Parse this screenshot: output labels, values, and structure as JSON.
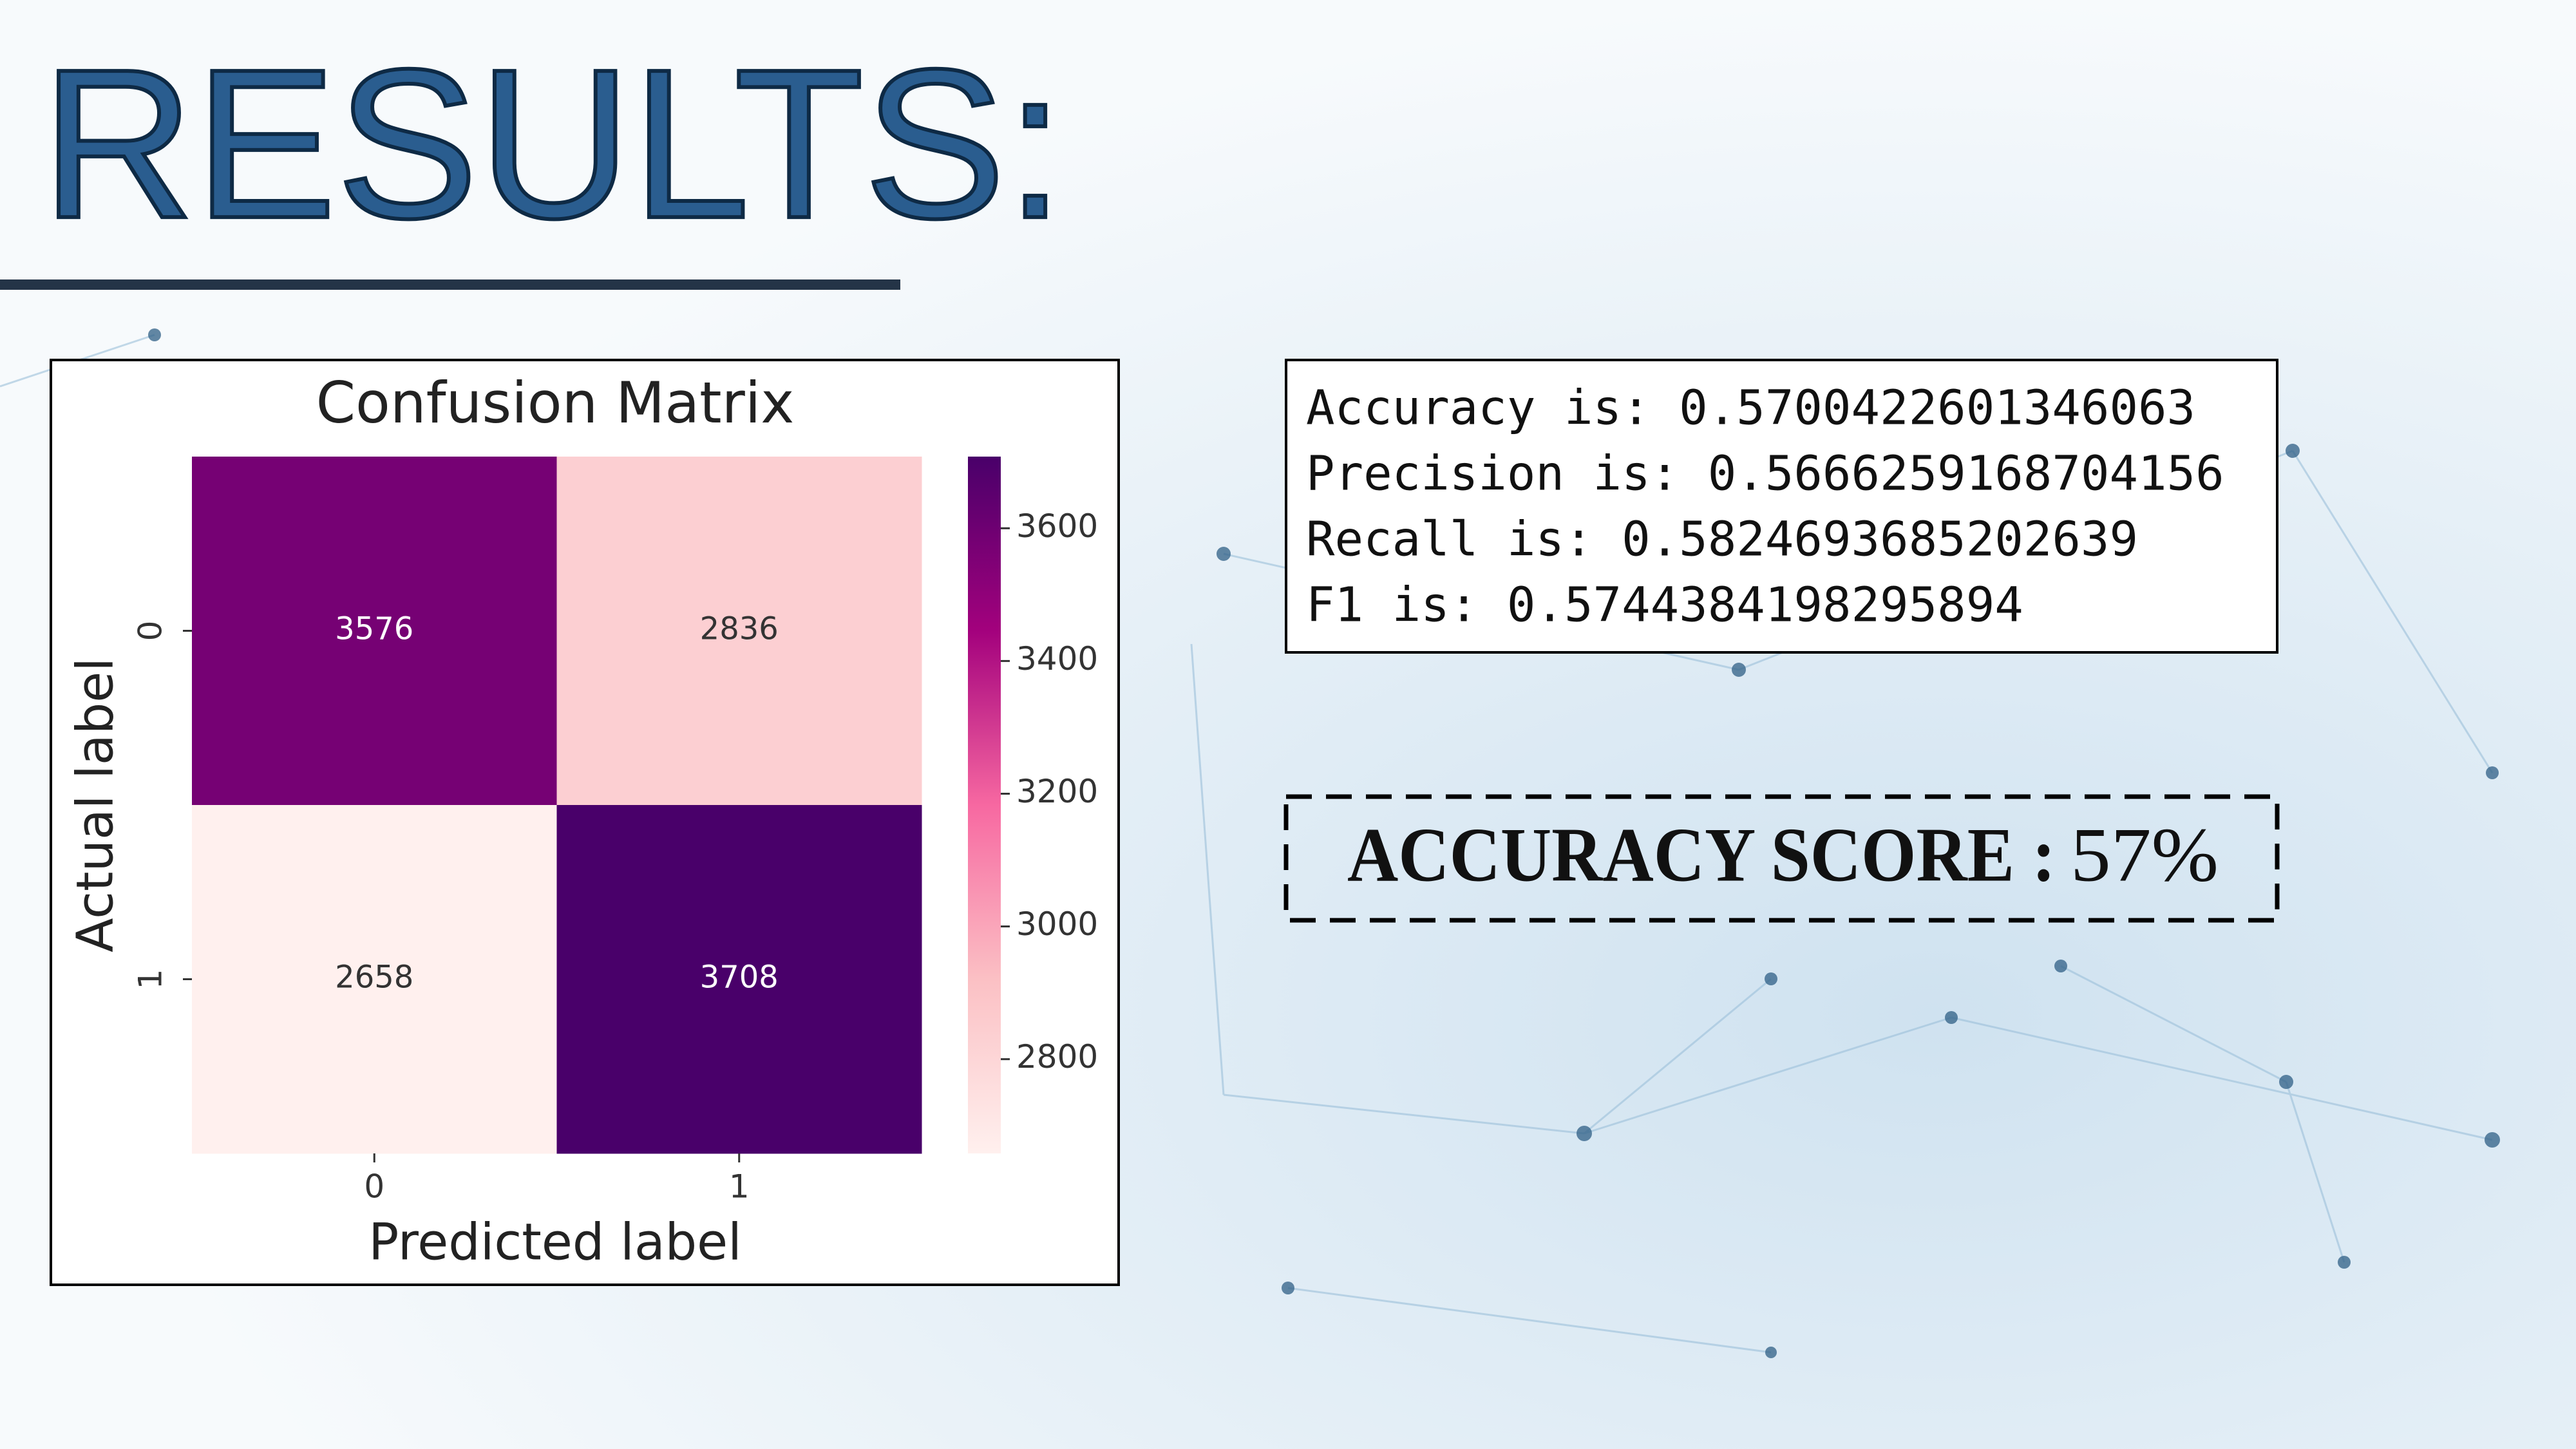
{
  "title": "RESULTS:",
  "chart_data": {
    "type": "heatmap",
    "title": "Confusion Matrix",
    "x_label": "Predicted label",
    "y_label": "Actual label",
    "x_categories": [
      "0",
      "1"
    ],
    "y_categories": [
      "0",
      "1"
    ],
    "values": [
      [
        3576,
        2836
      ],
      [
        2658,
        3708
      ]
    ],
    "colormap": [
      "#fff0ee",
      "#fbc0c4",
      "#f768a1",
      "#a3017d",
      "#49006a"
    ],
    "clim": [
      2658,
      3708
    ],
    "cticks": [
      2800,
      3000,
      3200,
      3400,
      3600
    ]
  },
  "metrics": [
    "Accuracy is: 0.5700422601346063",
    "Precision is: 0.5666259168704156",
    "Recall is: 0.5824693685202639",
    "F1 is: 0.5744384198295894"
  ],
  "accuracy_score": {
    "label": "ACCURACY SCORE :",
    "value": "57%"
  }
}
